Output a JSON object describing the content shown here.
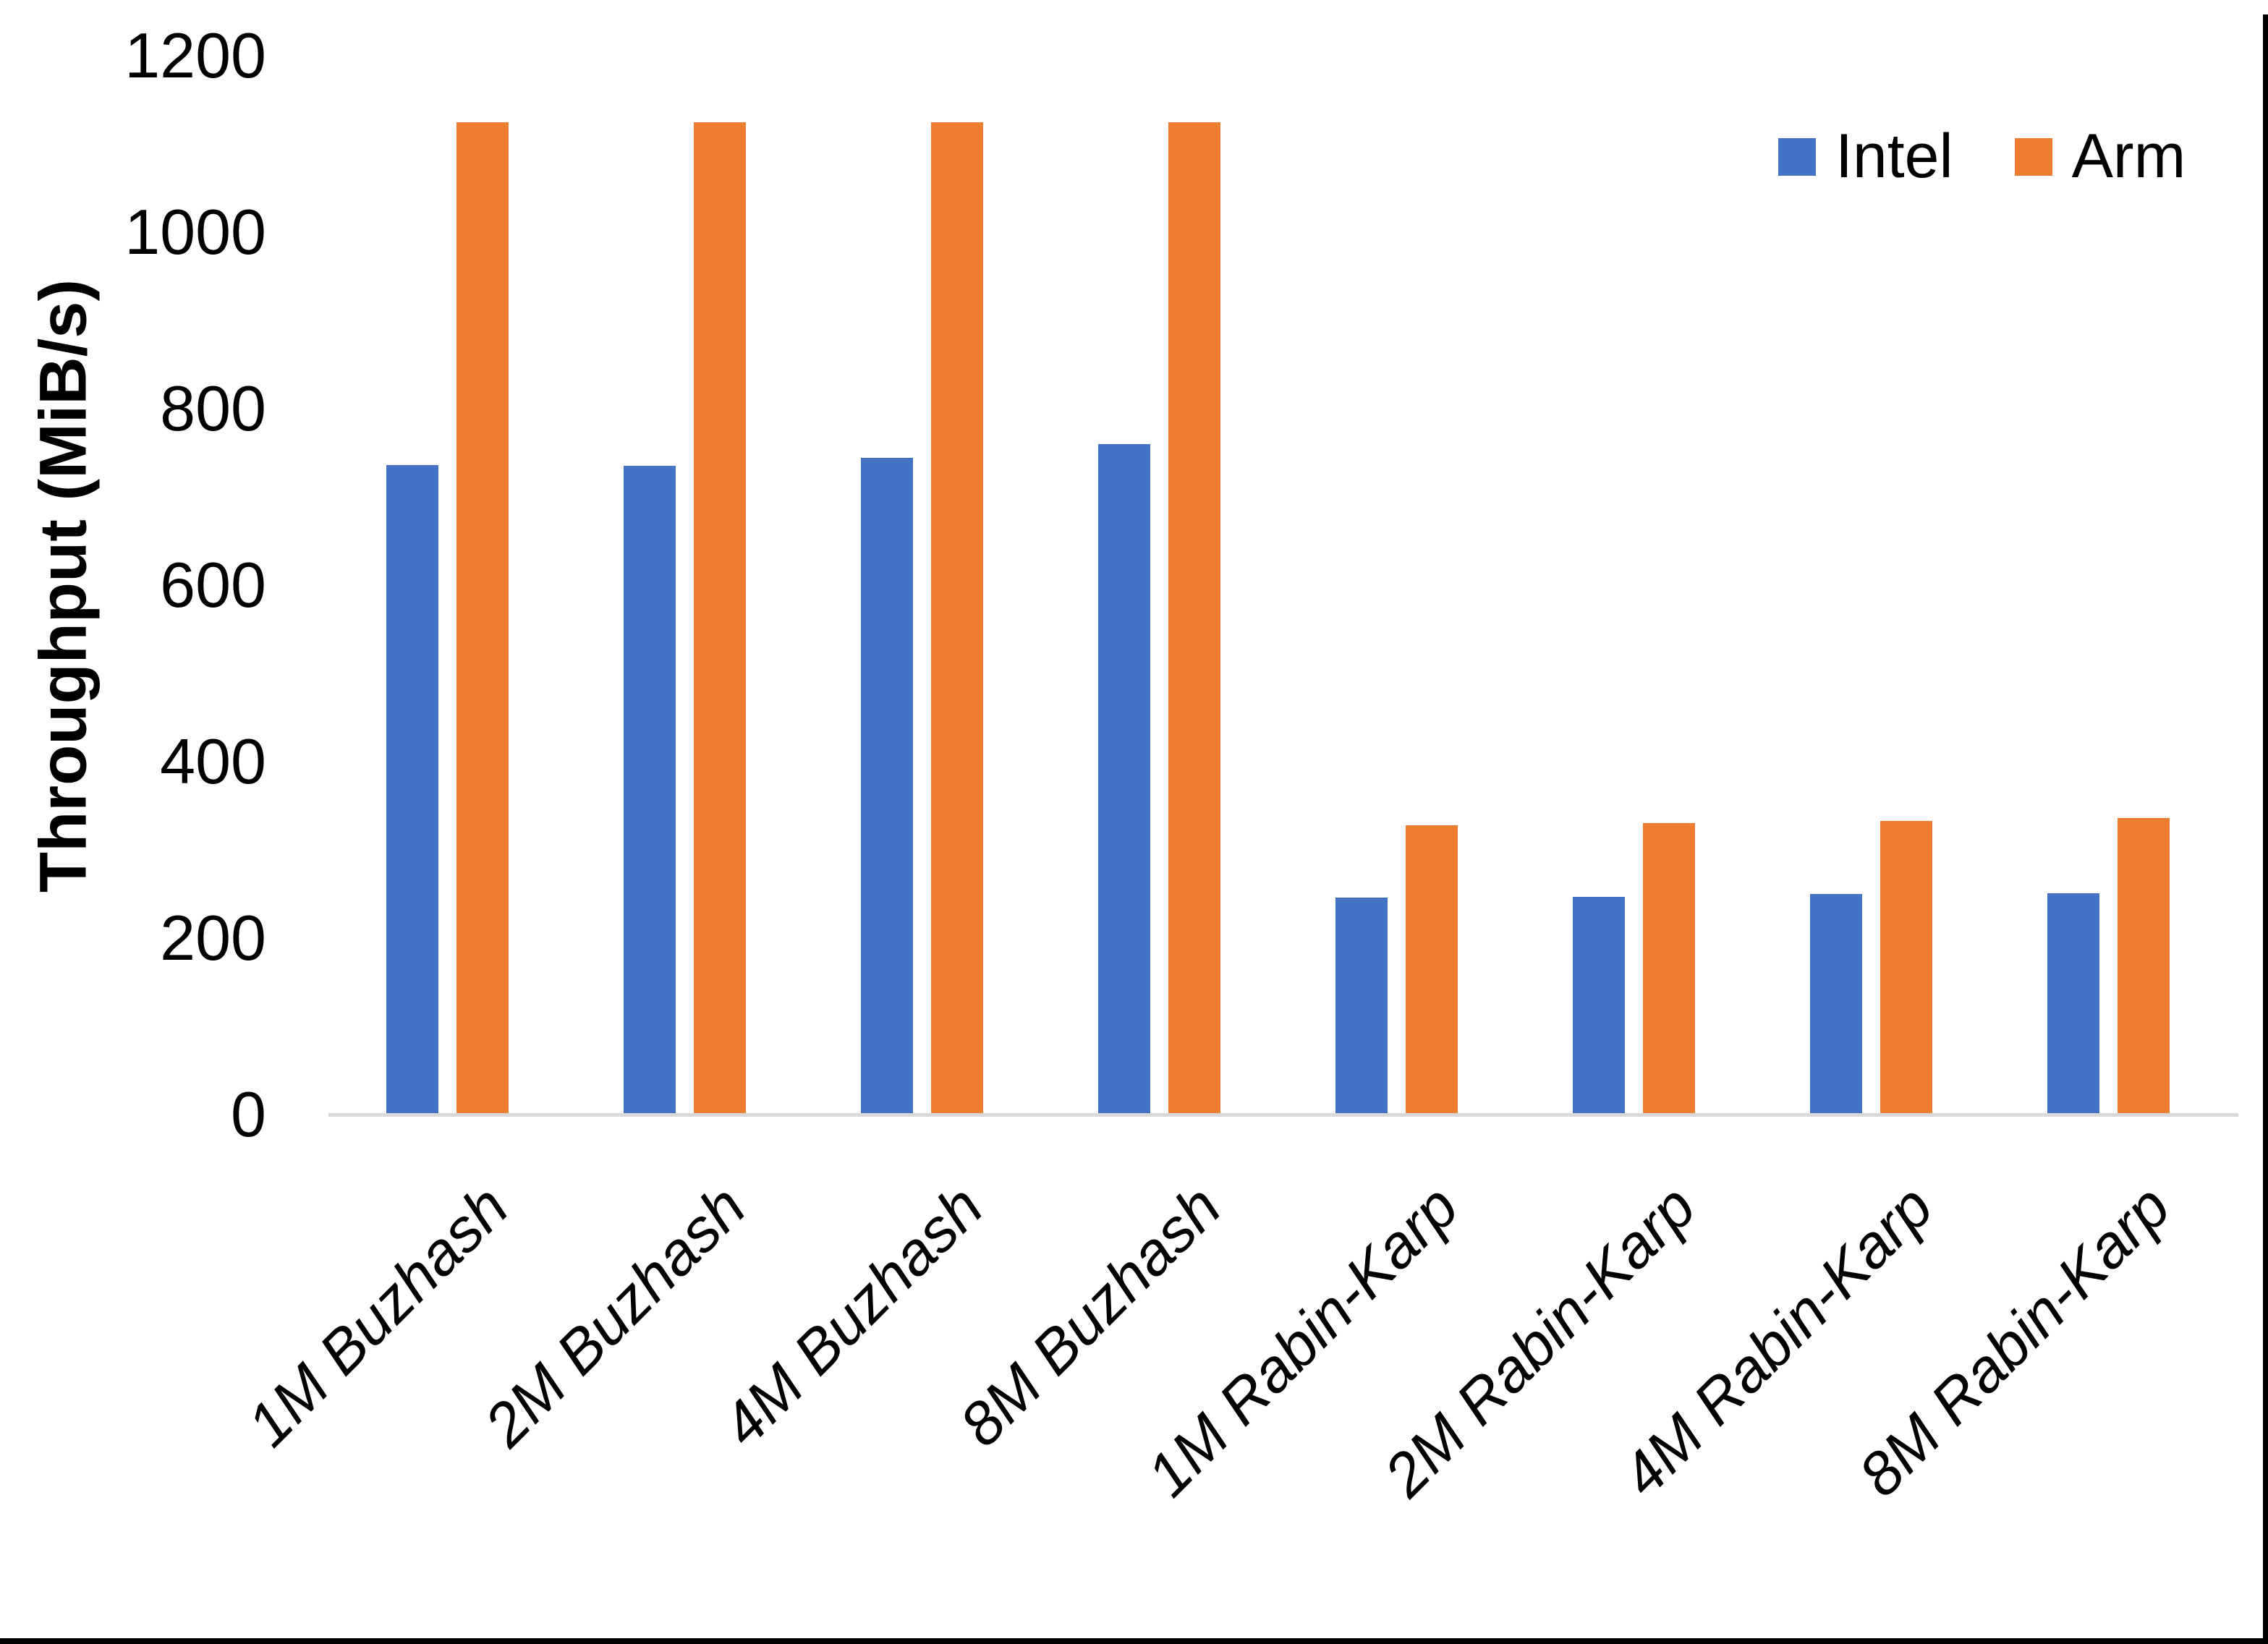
{
  "chart_data": {
    "type": "bar",
    "title": "",
    "ylabel": "Throughput (MiB/s)",
    "xlabel": "",
    "categories": [
      "1M Buzhash",
      "2M Buzhash",
      "4M Buzhash",
      "8M Buzhash",
      "1M Rabin-Karp",
      "2M Rabin-Karp",
      "4M Rabin-Karp",
      "8M Rabin-Karp"
    ],
    "series": [
      {
        "name": "Intel",
        "color": "#4472C4",
        "values": [
          736,
          735,
          744,
          760,
          246,
          247,
          250,
          251
        ]
      },
      {
        "name": "Arm",
        "color": "#ED7D31",
        "values": [
          1125,
          1125,
          1125,
          1125,
          328,
          330,
          333,
          336
        ]
      }
    ],
    "ylim": [
      0,
      1200
    ],
    "yticks": [
      0,
      200,
      400,
      600,
      800,
      1000,
      1200
    ],
    "grid": false,
    "legend_position": "top-right",
    "axis_line_color": "#D9D9D9"
  }
}
